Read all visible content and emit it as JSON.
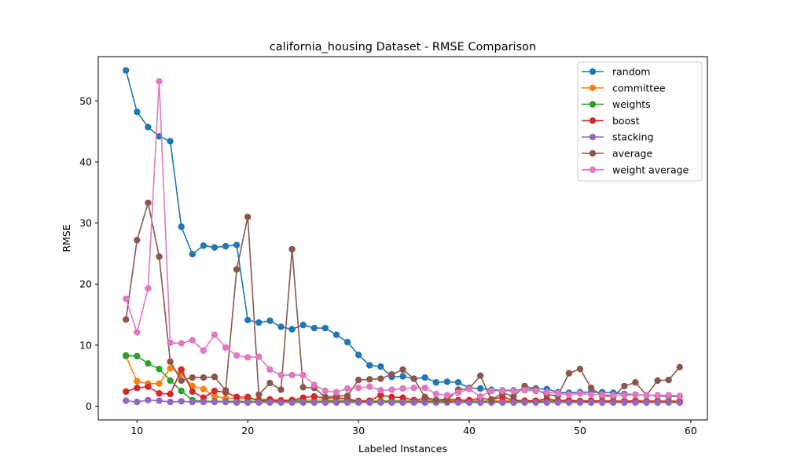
{
  "chart_data": {
    "type": "line",
    "title": "california_housing Dataset - RMSE Comparison",
    "xlabel": "Labeled Instances",
    "ylabel": "RMSE",
    "xlim": [
      6.5,
      61.5
    ],
    "ylim": [
      -2.25,
      57.25
    ],
    "xticks": [
      10,
      20,
      30,
      40,
      50,
      60
    ],
    "yticks": [
      0,
      10,
      20,
      30,
      40,
      50
    ],
    "grid": false,
    "legend_position": "top-right",
    "x": [
      9,
      10,
      11,
      12,
      13,
      14,
      15,
      16,
      17,
      18,
      19,
      20,
      21,
      22,
      23,
      24,
      25,
      26,
      27,
      28,
      29,
      30,
      31,
      32,
      33,
      34,
      35,
      36,
      37,
      38,
      39,
      40,
      41,
      42,
      43,
      44,
      45,
      46,
      47,
      48,
      49,
      50,
      51,
      52,
      53,
      54,
      55,
      56,
      57,
      58,
      59
    ],
    "series": [
      {
        "name": "random",
        "color": "#1f77b4",
        "values": [
          55.0,
          48.2,
          45.7,
          44.2,
          43.4,
          29.4,
          24.9,
          26.3,
          26.0,
          26.2,
          26.4,
          14.1,
          13.7,
          14.0,
          13.0,
          12.6,
          13.3,
          12.8,
          12.8,
          11.7,
          10.5,
          8.4,
          6.7,
          6.5,
          4.8,
          4.9,
          4.5,
          4.7,
          3.9,
          4.0,
          3.9,
          3.0,
          2.9,
          2.7,
          2.6,
          2.6,
          2.7,
          2.9,
          2.8,
          2.3,
          2.2,
          2.3,
          2.3,
          2.3,
          2.2,
          2.0,
          1.9,
          1.8,
          1.7,
          1.6,
          1.6
        ]
      },
      {
        "name": "committee",
        "color": "#ff7f0e",
        "values": [
          8.2,
          4.1,
          3.7,
          3.7,
          6.2,
          5.3,
          3.3,
          2.8,
          1.6,
          1.3,
          1.3,
          1.2,
          1.1,
          1.1,
          1.0,
          1.0,
          1.0,
          1.0,
          1.0,
          1.0,
          0.9,
          0.9,
          0.9,
          0.9,
          0.9,
          0.9,
          0.9,
          0.9,
          0.9,
          0.9,
          0.9,
          0.9,
          0.9,
          0.9,
          0.9,
          0.9,
          0.9,
          0.9,
          0.9,
          0.9,
          0.9,
          0.9,
          0.9,
          0.9,
          0.9,
          0.9,
          0.9,
          0.9,
          0.9,
          0.9,
          0.9
        ]
      },
      {
        "name": "weights",
        "color": "#2ca02c",
        "values": [
          8.3,
          8.2,
          7.0,
          6.1,
          4.2,
          2.5,
          1.0,
          0.8,
          0.8,
          0.8,
          0.8,
          0.8,
          0.8,
          0.8,
          0.8,
          0.8,
          0.8,
          0.7,
          0.8,
          0.8,
          0.8,
          0.8,
          0.7,
          0.8,
          0.8,
          0.8,
          0.7,
          0.8,
          0.7,
          0.8,
          0.7,
          0.8,
          0.7,
          0.8,
          0.7,
          0.8,
          0.7,
          0.8,
          0.7,
          0.8,
          0.7,
          0.8,
          0.7,
          0.8,
          0.7,
          0.8,
          0.7,
          0.8,
          0.7,
          0.8,
          0.7
        ]
      },
      {
        "name": "boost",
        "color": "#d62728",
        "values": [
          2.4,
          3.0,
          3.2,
          2.1,
          2.0,
          6.0,
          2.4,
          1.4,
          2.5,
          2.3,
          1.5,
          1.5,
          0.9,
          1.1,
          0.9,
          1.0,
          1.4,
          1.6,
          1.3,
          1.4,
          1.2,
          0.8,
          0.9,
          1.8,
          1.5,
          1.4,
          1.0,
          1.3,
          1.0,
          1.2,
          1.0,
          1.0,
          1.3,
          1.1,
          1.5,
          1.0,
          0.9,
          0.9,
          1.2,
          0.9,
          1.0,
          0.8,
          0.9,
          0.8,
          0.8,
          0.7,
          0.9,
          0.7,
          0.8,
          0.7,
          0.7
        ]
      },
      {
        "name": "stacking",
        "color": "#9467bd",
        "values": [
          0.9,
          0.7,
          1.0,
          0.9,
          0.7,
          0.8,
          0.7,
          0.7,
          0.7,
          0.7,
          0.6,
          0.6,
          0.6,
          0.6,
          0.6,
          0.6,
          0.6,
          0.6,
          0.6,
          0.6,
          0.6,
          0.6,
          0.6,
          0.6,
          0.6,
          0.6,
          0.6,
          0.6,
          0.6,
          0.6,
          0.6,
          0.6,
          0.6,
          0.6,
          0.6,
          0.6,
          0.6,
          0.6,
          0.6,
          0.6,
          0.6,
          0.6,
          0.6,
          0.6,
          0.6,
          0.6,
          0.6,
          0.6,
          0.6,
          0.6,
          0.6
        ]
      },
      {
        "name": "average",
        "color": "#8c564b",
        "values": [
          14.2,
          27.2,
          33.3,
          24.5,
          7.3,
          4.2,
          4.7,
          4.7,
          4.8,
          2.6,
          22.4,
          31.0,
          1.9,
          3.8,
          2.7,
          25.7,
          3.1,
          3.0,
          1.5,
          1.7,
          1.7,
          4.3,
          4.4,
          4.5,
          5.2,
          6.0,
          4.5,
          1.5,
          1.0,
          1.0,
          2.7,
          2.9,
          5.0,
          1.0,
          2.2,
          1.6,
          3.3,
          2.8,
          1.9,
          1.7,
          5.4,
          6.1,
          3.0,
          1.7,
          1.6,
          3.3,
          3.9,
          1.8,
          4.2,
          4.3,
          6.4
        ]
      },
      {
        "name": "weight average",
        "color": "#e377c2",
        "values": [
          17.6,
          12.1,
          19.3,
          53.2,
          10.4,
          10.3,
          10.8,
          9.1,
          11.7,
          9.6,
          8.3,
          8.0,
          8.1,
          6.0,
          5.1,
          5.1,
          5.1,
          3.5,
          2.5,
          2.3,
          2.9,
          3.0,
          3.2,
          2.6,
          2.7,
          2.9,
          3.0,
          3.0,
          2.0,
          1.8,
          2.2,
          2.8,
          1.6,
          2.5,
          2.5,
          2.5,
          2.6,
          2.5,
          2.3,
          2.1,
          1.9,
          2.1,
          1.9,
          1.9,
          1.8,
          1.8,
          1.9,
          1.8,
          1.8,
          1.8,
          1.7
        ]
      }
    ]
  }
}
